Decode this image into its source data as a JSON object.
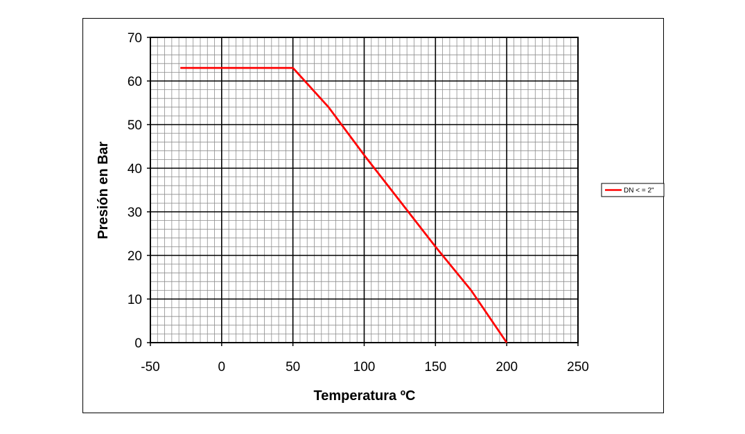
{
  "chart_data": {
    "type": "line",
    "title": "",
    "xlabel": "Temperatura ºC",
    "ylabel": "Presión en Bar",
    "xlim": [
      -50,
      250
    ],
    "ylim": [
      0,
      70
    ],
    "x_ticks": [
      -50,
      0,
      50,
      100,
      150,
      200,
      250
    ],
    "y_ticks": [
      0,
      10,
      20,
      30,
      40,
      50,
      60,
      70
    ],
    "x_tick_labels": [
      "-50",
      "0",
      "50",
      "100",
      "150",
      "200",
      "250"
    ],
    "y_tick_labels": [
      "0",
      "10",
      "20",
      "30",
      "40",
      "50",
      "60",
      "70"
    ],
    "grid": true,
    "legend": "right",
    "series": [
      {
        "name": "DN < = 2\"",
        "color": "#ff0000",
        "x": [
          -29,
          50,
          75,
          100,
          125,
          150,
          175,
          200
        ],
        "y": [
          63,
          63,
          54,
          43,
          32.5,
          22,
          12,
          0
        ]
      }
    ]
  }
}
